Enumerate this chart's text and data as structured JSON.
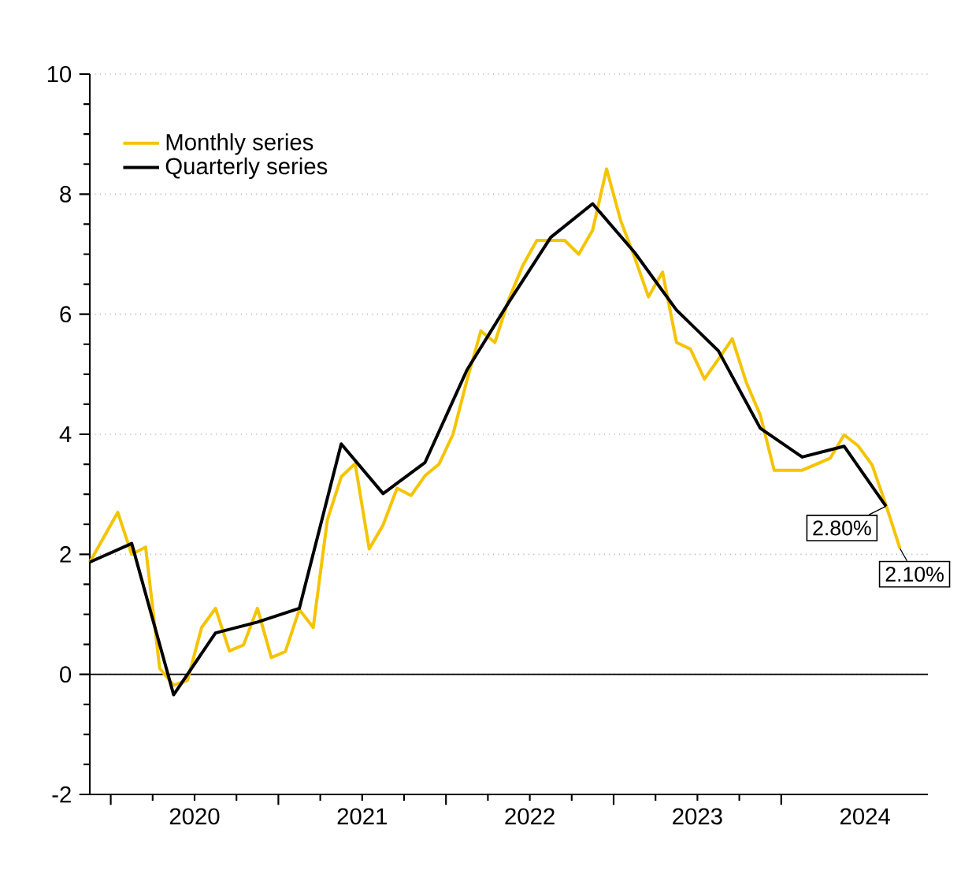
{
  "chart_data": {
    "type": "line",
    "xlim": [
      2019.875,
      2024.875
    ],
    "xticks": [
      {
        "value": 2020,
        "label": null
      },
      {
        "value": 2020.5,
        "label": "2020"
      },
      {
        "value": 2021,
        "label": null
      },
      {
        "value": 2021.5,
        "label": "2021"
      },
      {
        "value": 2022,
        "label": null
      },
      {
        "value": 2022.5,
        "label": "2022"
      },
      {
        "value": 2023,
        "label": null
      },
      {
        "value": 2023.5,
        "label": "2023"
      },
      {
        "value": 2024,
        "label": null
      },
      {
        "value": 2024.5,
        "label": "2024"
      }
    ],
    "ylim": [
      -2,
      10
    ],
    "yticks": [
      -2,
      0,
      2,
      4,
      6,
      8,
      10
    ],
    "grid": "y",
    "legend": "top left",
    "line_style": "solid",
    "marker": "none",
    "ref_lines": [
      {
        "axis": "y",
        "value": 0,
        "color": "#000000"
      }
    ],
    "series": [
      {
        "name": "Monthly series",
        "color": "#f5c400",
        "x": [
          2019.875,
          2020.042,
          2020.125,
          2020.208,
          2020.292,
          2020.375,
          2020.458,
          2020.542,
          2020.625,
          2020.708,
          2020.792,
          2020.875,
          2020.958,
          2021.042,
          2021.125,
          2021.208,
          2021.292,
          2021.375,
          2021.458,
          2021.542,
          2021.625,
          2021.708,
          2021.792,
          2021.875,
          2021.958,
          2022.042,
          2022.125,
          2022.208,
          2022.292,
          2022.375,
          2022.458,
          2022.542,
          2022.625,
          2022.708,
          2022.792,
          2022.875,
          2022.958,
          2023.042,
          2023.125,
          2023.208,
          2023.292,
          2023.375,
          2023.458,
          2023.542,
          2023.625,
          2023.708,
          2023.792,
          2023.875,
          2023.958,
          2024.042,
          2024.125,
          2024.208,
          2024.292,
          2024.375,
          2024.458,
          2024.542,
          2024.625,
          2024.708
        ],
        "values": [
          1.87,
          2.7,
          2.0,
          2.12,
          0.1,
          -0.18,
          -0.1,
          0.78,
          1.1,
          0.39,
          0.49,
          1.1,
          0.28,
          0.38,
          1.08,
          0.78,
          2.57,
          3.29,
          3.51,
          2.09,
          2.49,
          3.1,
          2.98,
          3.31,
          3.5,
          4.0,
          4.9,
          5.72,
          5.53,
          6.25,
          6.81,
          7.23,
          7.23,
          7.23,
          7.0,
          7.4,
          8.42,
          7.56,
          6.95,
          6.29,
          6.7,
          5.53,
          5.42,
          4.92,
          5.25,
          5.59,
          4.86,
          4.32,
          3.4,
          3.4,
          3.4,
          3.5,
          3.6,
          3.99,
          3.81,
          3.49,
          2.82,
          2.1
        ]
      },
      {
        "name": "Quarterly series",
        "color": "#000000",
        "x": [
          2019.875,
          2020.125,
          2020.375,
          2020.625,
          2020.875,
          2021.125,
          2021.375,
          2021.625,
          2021.875,
          2022.125,
          2022.375,
          2022.625,
          2022.875,
          2023.125,
          2023.375,
          2023.625,
          2023.875,
          2024.125,
          2024.375,
          2024.625
        ],
        "values": [
          1.87,
          2.18,
          -0.34,
          0.69,
          0.87,
          1.1,
          3.84,
          3.01,
          3.53,
          5.07,
          6.2,
          7.28,
          7.84,
          7.03,
          6.07,
          5.39,
          4.1,
          3.62,
          3.8,
          2.8
        ]
      }
    ],
    "annotations": [
      {
        "text": "2.80%",
        "x": 2024.625,
        "y": 2.8
      },
      {
        "text": "2.10%",
        "x": 2024.708,
        "y": 2.1
      }
    ]
  }
}
